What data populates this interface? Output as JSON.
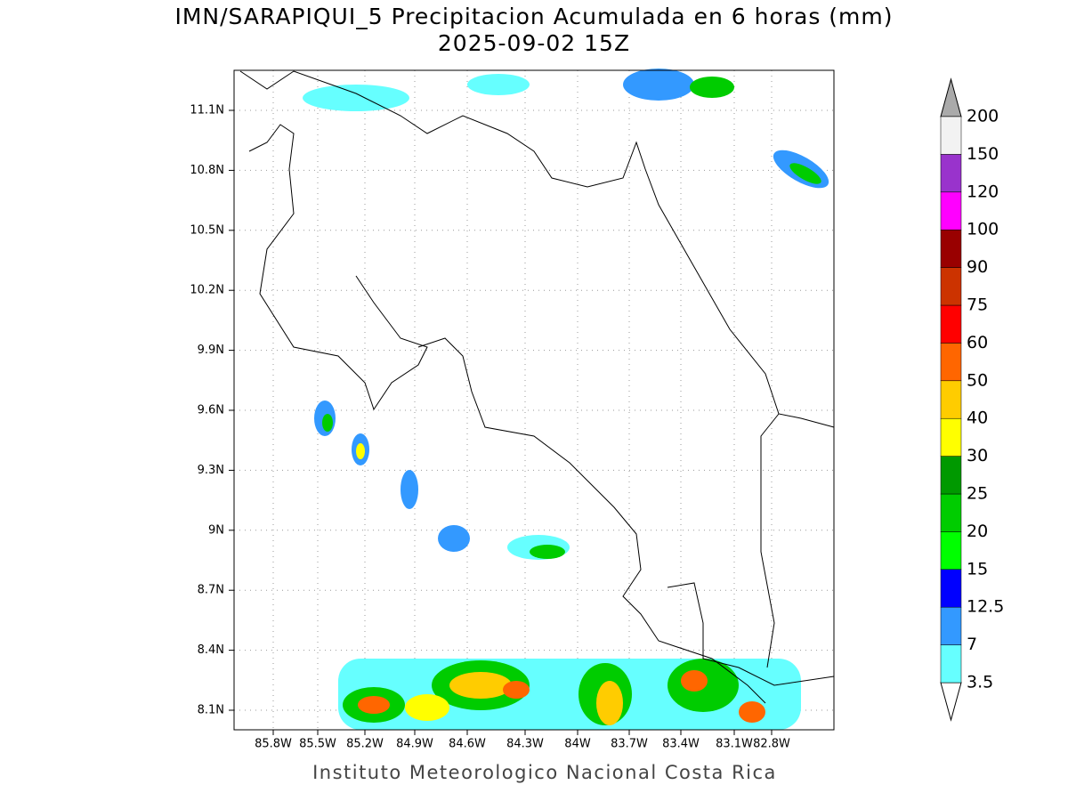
{
  "header": {
    "title": "IMN/SARAPIQUI_5 Precipitacion Acumulada en 6 horas (mm)",
    "subtitle": "2025-09-02 15Z"
  },
  "map": {
    "lat_labels": [
      "11.1N",
      "10.8N",
      "10.5N",
      "10.2N",
      "9.9N",
      "9.6N",
      "9.3N",
      "9N",
      "8.7N",
      "8.4N",
      "8.1N"
    ],
    "lon_labels": [
      "85.8W",
      "85.5W",
      "85.2W",
      "84.9W",
      "84.6W",
      "84.3W",
      "84W",
      "83.7W",
      "83.4W",
      "83.1W",
      "82.8W"
    ]
  },
  "colorbar": {
    "labels": [
      "3.5",
      "7",
      "12.5",
      "15",
      "20",
      "25",
      "30",
      "40",
      "50",
      "60",
      "75",
      "90",
      "100",
      "120",
      "150",
      "200"
    ],
    "colors": [
      "#66ffff",
      "#3399ff",
      "#0000ff",
      "#00ff00",
      "#00cc00",
      "#009900",
      "#ffff00",
      "#ffcc00",
      "#ff6600",
      "#ff0000",
      "#cc3300",
      "#990000",
      "#ff00ff",
      "#9933cc",
      "#f2f2f2"
    ],
    "below_color": "#ffffff",
    "above_color": "#aaaaaa"
  },
  "footer": "Instituto Meteorologico Nacional Costa Rica"
}
